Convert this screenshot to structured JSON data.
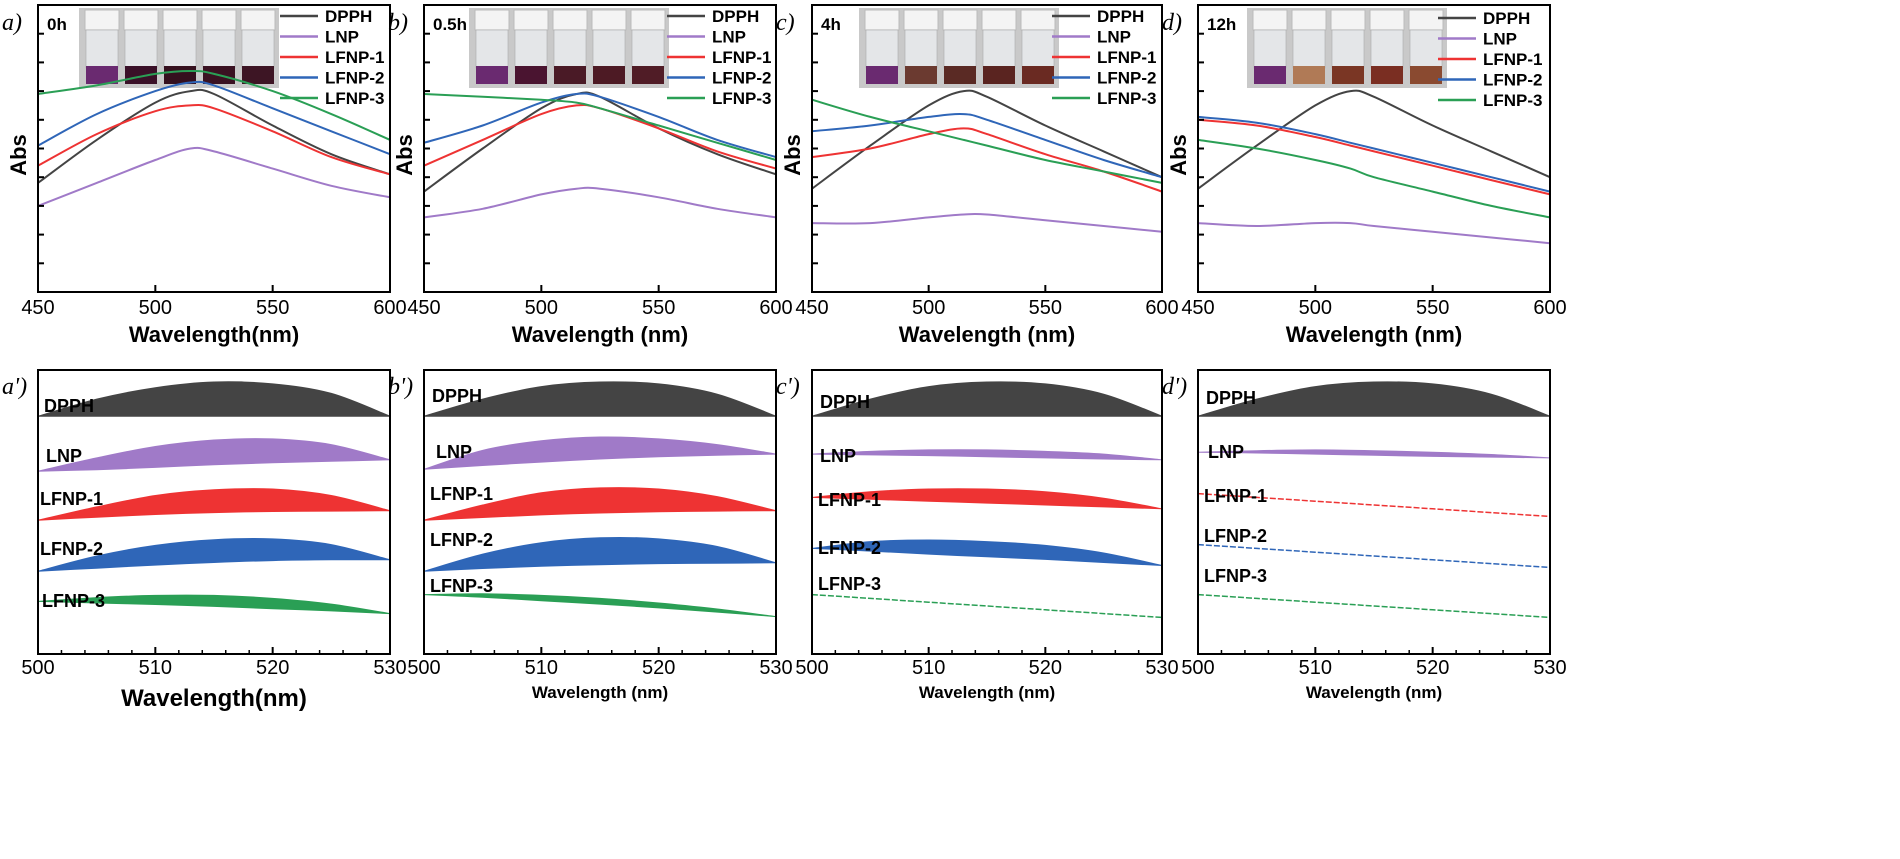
{
  "colors": {
    "DPPH": "#444444",
    "LNP": "#a07ac8",
    "LFNP-1": "#ee3333",
    "LFNP-2": "#2f66b8",
    "LFNP-3": "#2a9f55"
  },
  "series_names": [
    "DPPH",
    "LNP",
    "LFNP-1",
    "LFNP-2",
    "LFNP-3"
  ],
  "chart_data": [
    {
      "panel": "a)",
      "time": "0h",
      "type": "line",
      "xlabel": "Wavelength(nm)",
      "ylabel": "Abs",
      "xlim": [
        450,
        600
      ],
      "ylim": [
        0,
        1
      ],
      "xticks": [
        450,
        500,
        550,
        600
      ],
      "x": [
        450,
        475,
        500,
        515,
        525,
        550,
        575,
        600
      ],
      "series": [
        {
          "name": "DPPH",
          "values": [
            0.38,
            0.53,
            0.66,
            0.7,
            0.69,
            0.58,
            0.48,
            0.41
          ]
        },
        {
          "name": "LNP",
          "values": [
            0.3,
            0.38,
            0.46,
            0.5,
            0.49,
            0.43,
            0.37,
            0.33
          ]
        },
        {
          "name": "LFNP-1",
          "values": [
            0.44,
            0.55,
            0.63,
            0.65,
            0.64,
            0.56,
            0.47,
            0.41
          ]
        },
        {
          "name": "LFNP-2",
          "values": [
            0.51,
            0.62,
            0.7,
            0.73,
            0.72,
            0.64,
            0.56,
            0.48
          ]
        },
        {
          "name": "LFNP-3",
          "values": [
            0.69,
            0.72,
            0.76,
            0.77,
            0.76,
            0.7,
            0.62,
            0.53
          ]
        }
      ]
    },
    {
      "panel": "b)",
      "time": "0.5h",
      "type": "line",
      "xlabel": "Wavelength (nm)",
      "ylabel": "Abs",
      "xlim": [
        450,
        600
      ],
      "ylim": [
        0,
        1
      ],
      "xticks": [
        450,
        500,
        550,
        600
      ],
      "x": [
        450,
        475,
        500,
        515,
        525,
        550,
        575,
        600
      ],
      "series": [
        {
          "name": "DPPH",
          "values": [
            0.35,
            0.5,
            0.64,
            0.69,
            0.68,
            0.57,
            0.48,
            0.41
          ]
        },
        {
          "name": "LNP",
          "values": [
            0.26,
            0.29,
            0.34,
            0.36,
            0.36,
            0.33,
            0.29,
            0.26
          ]
        },
        {
          "name": "LFNP-1",
          "values": [
            0.44,
            0.53,
            0.62,
            0.65,
            0.64,
            0.57,
            0.49,
            0.43
          ]
        },
        {
          "name": "LFNP-2",
          "values": [
            0.52,
            0.58,
            0.66,
            0.69,
            0.68,
            0.61,
            0.53,
            0.47
          ]
        },
        {
          "name": "LFNP-3",
          "values": [
            0.69,
            0.68,
            0.67,
            0.66,
            0.64,
            0.58,
            0.52,
            0.46
          ]
        }
      ]
    },
    {
      "panel": "c)",
      "time": "4h",
      "type": "line",
      "xlabel": "Wavelength (nm)",
      "ylabel": "Abs",
      "xlim": [
        450,
        600
      ],
      "ylim": [
        0,
        1
      ],
      "xticks": [
        450,
        500,
        550,
        600
      ],
      "x": [
        450,
        475,
        500,
        515,
        525,
        550,
        575,
        600
      ],
      "series": [
        {
          "name": "DPPH",
          "values": [
            0.36,
            0.51,
            0.65,
            0.7,
            0.68,
            0.58,
            0.49,
            0.4
          ]
        },
        {
          "name": "LNP",
          "values": [
            0.24,
            0.24,
            0.26,
            0.27,
            0.27,
            0.25,
            0.23,
            0.21
          ]
        },
        {
          "name": "LFNP-1",
          "values": [
            0.47,
            0.5,
            0.55,
            0.57,
            0.55,
            0.48,
            0.42,
            0.35
          ]
        },
        {
          "name": "LFNP-2",
          "values": [
            0.56,
            0.58,
            0.61,
            0.62,
            0.6,
            0.53,
            0.46,
            0.4
          ]
        },
        {
          "name": "LFNP-3",
          "values": [
            0.67,
            0.61,
            0.56,
            0.53,
            0.51,
            0.46,
            0.42,
            0.38
          ]
        }
      ]
    },
    {
      "panel": "d)",
      "time": "12h",
      "type": "line",
      "xlabel": "Wavelength (nm)",
      "ylabel": "Abs",
      "xlim": [
        450,
        600
      ],
      "ylim": [
        0,
        1
      ],
      "xticks": [
        450,
        500,
        550,
        600
      ],
      "x": [
        450,
        475,
        500,
        515,
        525,
        550,
        575,
        600
      ],
      "series": [
        {
          "name": "DPPH",
          "values": [
            0.36,
            0.51,
            0.65,
            0.7,
            0.68,
            0.58,
            0.49,
            0.4
          ]
        },
        {
          "name": "LNP",
          "values": [
            0.24,
            0.23,
            0.24,
            0.24,
            0.23,
            0.21,
            0.19,
            0.17
          ]
        },
        {
          "name": "LFNP-1",
          "values": [
            0.6,
            0.58,
            0.54,
            0.51,
            0.49,
            0.44,
            0.39,
            0.34
          ]
        },
        {
          "name": "LFNP-2",
          "values": [
            0.61,
            0.59,
            0.55,
            0.52,
            0.5,
            0.45,
            0.4,
            0.35
          ]
        },
        {
          "name": "LFNP-3",
          "values": [
            0.53,
            0.5,
            0.46,
            0.43,
            0.4,
            0.35,
            0.3,
            0.26
          ]
        }
      ]
    },
    {
      "panel": "a')",
      "type": "area",
      "xlabel": "Wavelength(nm)",
      "xlim": [
        500,
        530
      ],
      "xticks": [
        500,
        510,
        520,
        530
      ],
      "x": [
        500,
        505,
        510,
        515,
        520,
        525,
        530
      ],
      "series": [
        {
          "name": "DPPH",
          "upper": [
            0.1,
            0.55,
            0.85,
            1.0,
            0.95,
            0.7,
            0.1
          ],
          "lower": [
            0.1,
            0.1,
            0.1,
            0.1,
            0.1,
            0.1,
            0.1
          ]
        },
        {
          "name": "LNP",
          "upper": [
            0.1,
            0.45,
            0.75,
            0.92,
            0.95,
            0.8,
            0.4
          ],
          "lower": [
            0.1,
            0.14,
            0.2,
            0.27,
            0.32,
            0.36,
            0.4
          ]
        },
        {
          "name": "LFNP-1",
          "upper": [
            0.1,
            0.45,
            0.75,
            0.9,
            0.92,
            0.75,
            0.35
          ],
          "lower": [
            0.1,
            0.18,
            0.25,
            0.3,
            0.33,
            0.34,
            0.35
          ]
        },
        {
          "name": "LFNP-2",
          "upper": [
            0.1,
            0.5,
            0.78,
            0.93,
            0.95,
            0.8,
            0.4
          ],
          "lower": [
            0.1,
            0.18,
            0.26,
            0.33,
            0.38,
            0.4,
            0.4
          ]
        },
        {
          "name": "LFNP-3",
          "upper": [
            0.62,
            0.72,
            0.78,
            0.78,
            0.7,
            0.55,
            0.3
          ],
          "lower": [
            0.62,
            0.58,
            0.54,
            0.49,
            0.43,
            0.37,
            0.3
          ]
        }
      ]
    },
    {
      "panel": "b')",
      "type": "area",
      "xlabel": "Wavelength (nm)",
      "xlim": [
        500,
        530
      ],
      "xticks": [
        500,
        510,
        520,
        530
      ],
      "x": [
        500,
        505,
        510,
        515,
        520,
        525,
        530
      ],
      "series": [
        {
          "name": "DPPH",
          "upper": [
            0.1,
            0.55,
            0.88,
            1.0,
            0.95,
            0.68,
            0.1
          ],
          "lower": [
            0.1,
            0.1,
            0.1,
            0.1,
            0.1,
            0.1,
            0.1
          ]
        },
        {
          "name": "LNP",
          "upper": [
            0.15,
            0.65,
            0.9,
            1.0,
            0.95,
            0.8,
            0.55
          ],
          "lower": [
            0.15,
            0.25,
            0.34,
            0.42,
            0.48,
            0.52,
            0.55
          ]
        },
        {
          "name": "LFNP-1",
          "upper": [
            0.1,
            0.5,
            0.82,
            0.95,
            0.92,
            0.72,
            0.35
          ],
          "lower": [
            0.1,
            0.17,
            0.24,
            0.29,
            0.32,
            0.34,
            0.35
          ]
        },
        {
          "name": "LFNP-2",
          "upper": [
            0.1,
            0.55,
            0.85,
            0.98,
            0.95,
            0.75,
            0.32
          ],
          "lower": [
            0.1,
            0.17,
            0.23,
            0.27,
            0.3,
            0.31,
            0.32
          ]
        },
        {
          "name": "LFNP-3",
          "upper": [
            0.8,
            0.82,
            0.78,
            0.7,
            0.58,
            0.42,
            0.22
          ],
          "lower": [
            0.8,
            0.73,
            0.64,
            0.55,
            0.45,
            0.34,
            0.22
          ]
        }
      ]
    },
    {
      "panel": "c')",
      "type": "area",
      "xlabel": "Wavelength (nm)",
      "xlim": [
        500,
        530
      ],
      "xticks": [
        500,
        510,
        520,
        530
      ],
      "x": [
        500,
        505,
        510,
        515,
        520,
        525,
        530
      ],
      "series": [
        {
          "name": "DPPH",
          "upper": [
            0.1,
            0.55,
            0.88,
            1.0,
            0.95,
            0.68,
            0.1
          ],
          "lower": [
            0.1,
            0.1,
            0.1,
            0.1,
            0.1,
            0.1,
            0.1
          ]
        },
        {
          "name": "LNP",
          "upper": [
            0.55,
            0.62,
            0.66,
            0.66,
            0.62,
            0.55,
            0.4
          ],
          "lower": [
            0.55,
            0.53,
            0.51,
            0.48,
            0.45,
            0.42,
            0.4
          ]
        },
        {
          "name": "LFNP-1",
          "upper": [
            0.7,
            0.85,
            0.92,
            0.92,
            0.85,
            0.68,
            0.4
          ],
          "lower": [
            0.7,
            0.65,
            0.6,
            0.55,
            0.5,
            0.45,
            0.4
          ]
        },
        {
          "name": "LFNP-2",
          "upper": [
            0.7,
            0.88,
            0.92,
            0.88,
            0.78,
            0.58,
            0.25
          ],
          "lower": [
            0.7,
            0.63,
            0.55,
            0.48,
            0.41,
            0.33,
            0.25
          ]
        },
        {
          "name": "LFNP-3",
          "upper": [
            0.8,
            0.7,
            0.6,
            0.5,
            0.4,
            0.3,
            0.2
          ],
          "lower": [
            0.8,
            0.7,
            0.6,
            0.5,
            0.4,
            0.3,
            0.2
          ]
        }
      ]
    },
    {
      "panel": "d')",
      "type": "area",
      "xlabel": "Wavelength (nm)",
      "xlim": [
        500,
        530
      ],
      "xticks": [
        500,
        510,
        520,
        530
      ],
      "x": [
        500,
        505,
        510,
        515,
        520,
        525,
        530
      ],
      "series": [
        {
          "name": "DPPH",
          "upper": [
            0.1,
            0.55,
            0.88,
            1.0,
            0.95,
            0.68,
            0.1
          ],
          "lower": [
            0.1,
            0.1,
            0.1,
            0.1,
            0.1,
            0.1,
            0.1
          ]
        },
        {
          "name": "LNP",
          "upper": [
            0.6,
            0.64,
            0.66,
            0.64,
            0.6,
            0.54,
            0.45
          ],
          "lower": [
            0.6,
            0.58,
            0.55,
            0.52,
            0.49,
            0.47,
            0.45
          ]
        },
        {
          "name": "LFNP-1",
          "upper": [
            0.8,
            0.7,
            0.6,
            0.5,
            0.4,
            0.3,
            0.2
          ],
          "lower": [
            0.8,
            0.7,
            0.6,
            0.5,
            0.4,
            0.3,
            0.2
          ]
        },
        {
          "name": "LFNP-2",
          "upper": [
            0.8,
            0.7,
            0.6,
            0.5,
            0.4,
            0.3,
            0.2
          ],
          "lower": [
            0.8,
            0.7,
            0.6,
            0.5,
            0.4,
            0.3,
            0.2
          ]
        },
        {
          "name": "LFNP-3",
          "upper": [
            0.8,
            0.7,
            0.6,
            0.5,
            0.4,
            0.3,
            0.2
          ],
          "lower": [
            0.8,
            0.7,
            0.6,
            0.5,
            0.4,
            0.3,
            0.2
          ]
        }
      ]
    }
  ],
  "photos": [
    {
      "panel": "a)",
      "liquids": [
        "#6a2a70",
        "#3a1028",
        "#35101e",
        "#3a1222",
        "#3d1524"
      ]
    },
    {
      "panel": "b)",
      "liquids": [
        "#6a2a70",
        "#4a1430",
        "#4a1a26",
        "#4d1a24",
        "#501c26"
      ]
    },
    {
      "panel": "c)",
      "liquids": [
        "#6a2a70",
        "#6b3a30",
        "#5a2a24",
        "#5a2420",
        "#6a2a22"
      ]
    },
    {
      "panel": "d)",
      "liquids": [
        "#6a2a70",
        "#b07a56",
        "#7a3624",
        "#7a2e22",
        "#8a4a30"
      ]
    }
  ]
}
